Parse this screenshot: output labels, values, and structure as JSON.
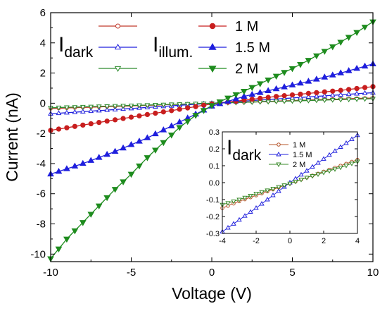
{
  "chart_data": [
    {
      "type": "line",
      "xlabel": "Voltage (V)",
      "ylabel": "Current (nA)",
      "xlim": [
        -10,
        10
      ],
      "ylim": [
        -10.5,
        6
      ],
      "xticks": [
        -10,
        -5,
        0,
        5,
        10
      ],
      "yticks": [
        -10,
        -8,
        -6,
        -4,
        -2,
        0,
        2,
        4,
        6
      ],
      "grid": false,
      "legend": {
        "placement": "top",
        "group_labels": [
          {
            "main": "I",
            "sub": "dark"
          },
          {
            "main": "I",
            "sub": "illum."
          }
        ],
        "entries": [
          "1 M",
          "1.5 M",
          "2 M"
        ]
      },
      "series": [
        {
          "name": "1 M",
          "condition": "dark",
          "color": "#c0392b",
          "marker": "circle-open",
          "x": [
            -10,
            10
          ],
          "y": [
            -0.35,
            0.35
          ]
        },
        {
          "name": "1.5 M",
          "condition": "dark",
          "color": "#2222dd",
          "marker": "triangle-up-open",
          "x": [
            -10,
            10
          ],
          "y": [
            -0.7,
            0.7
          ]
        },
        {
          "name": "2 M",
          "condition": "dark",
          "color": "#2e8b2e",
          "marker": "triangle-down-open",
          "x": [
            -10,
            10
          ],
          "y": [
            -0.3,
            0.3
          ]
        },
        {
          "name": "1 M",
          "condition": "illum.",
          "color": "#c81e1e",
          "marker": "circle-filled",
          "x": [
            -10,
            -8,
            -6,
            -4,
            -2,
            0,
            2,
            4,
            6,
            8,
            10
          ],
          "y": [
            -1.8,
            -1.45,
            -1.1,
            -0.75,
            -0.4,
            -0.05,
            0.2,
            0.45,
            0.65,
            0.85,
            1.1
          ]
        },
        {
          "name": "1.5 M",
          "condition": "illum.",
          "color": "#1f1fdd",
          "marker": "triangle-up-filled",
          "x": [
            -10,
            -8,
            -6,
            -4,
            -2,
            0,
            2,
            4,
            6,
            8,
            10
          ],
          "y": [
            -4.7,
            -4.0,
            -3.2,
            -2.3,
            -1.25,
            -0.2,
            0.45,
            0.95,
            1.45,
            2.0,
            2.6
          ]
        },
        {
          "name": "2 M",
          "condition": "illum.",
          "color": "#1e8c1e",
          "marker": "triangle-down-filled",
          "x": [
            -10,
            -9,
            -8,
            -7,
            -6,
            -5,
            -4,
            -3,
            -2,
            -1,
            0,
            1,
            2,
            3,
            4,
            5,
            6,
            7,
            8,
            9,
            10
          ],
          "y": [
            -10.3,
            -9.0,
            -7.9,
            -6.8,
            -5.7,
            -4.7,
            -3.6,
            -2.6,
            -1.6,
            -0.8,
            -0.15,
            0.35,
            0.8,
            1.3,
            1.8,
            2.3,
            2.85,
            3.45,
            4.05,
            4.7,
            5.4
          ]
        }
      ]
    },
    {
      "type": "line",
      "panel": "inset",
      "title": {
        "main": "I",
        "sub": "dark"
      },
      "xlim": [
        -4,
        4
      ],
      "ylim": [
        -0.3,
        0.3
      ],
      "xticks": [
        -4,
        -2,
        0,
        2,
        4
      ],
      "yticks": [
        -0.3,
        -0.2,
        -0.1,
        0.0,
        0.1,
        0.2,
        0.3
      ],
      "ytick_labels": [
        "-0.3",
        "-0.2",
        "-0.1",
        "0.0",
        "0.1",
        "0.2",
        "0.3"
      ],
      "legend": {
        "placement": "top-left"
      },
      "series": [
        {
          "name": "1 M",
          "color": "#b5542a",
          "marker": "circle-open",
          "x": [
            -4,
            -3,
            -2,
            -1,
            0,
            1,
            2,
            3,
            4
          ],
          "y": [
            -0.15,
            -0.11,
            -0.075,
            -0.04,
            -0.005,
            0.03,
            0.065,
            0.1,
            0.135
          ]
        },
        {
          "name": "1.5 M",
          "color": "#2222dd",
          "marker": "triangle-up-open",
          "x": [
            -4,
            -3,
            -2,
            -1,
            0,
            1,
            2,
            3,
            4
          ],
          "y": [
            -0.29,
            -0.22,
            -0.15,
            -0.075,
            0.0,
            0.07,
            0.14,
            0.21,
            0.28
          ]
        },
        {
          "name": "2 M",
          "color": "#3a8a2a",
          "marker": "triangle-down-open",
          "x": [
            -4,
            -3,
            -2,
            -1,
            0,
            1,
            2,
            3,
            4
          ],
          "y": [
            -0.13,
            -0.1,
            -0.065,
            -0.035,
            -0.005,
            0.03,
            0.06,
            0.09,
            0.125
          ]
        }
      ]
    }
  ]
}
